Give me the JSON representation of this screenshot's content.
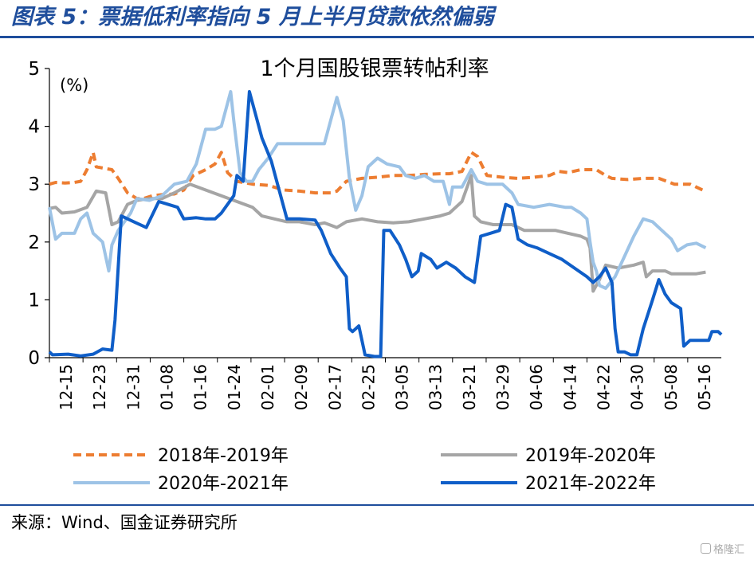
{
  "figure_title": "图表 5：票据低利率指向 5 月上半月贷款依然偏弱",
  "source": "来源：Wind、国金证券研究所",
  "watermark": "格隆汇",
  "chart_data": {
    "type": "line",
    "title": "1个月国股银票转帖利率",
    "ylabel": "(%)",
    "ylim": [
      0,
      5
    ],
    "yticks": [
      0,
      1,
      2,
      3,
      4,
      5
    ],
    "x_ticks": [
      "12-15",
      "12-23",
      "12-31",
      "01-08",
      "01-16",
      "01-24",
      "02-01",
      "02-09",
      "02-17",
      "02-25",
      "03-05",
      "03-13",
      "03-21",
      "03-29",
      "04-06",
      "04-14",
      "04-22",
      "04-30",
      "05-08",
      "05-16"
    ],
    "legend_position": "bottom",
    "series": [
      {
        "name": "2018年-2019年",
        "color": "#ed7d31",
        "style": "dashed",
        "points": [
          [
            0,
            3.0
          ],
          [
            2,
            3.03
          ],
          [
            5,
            3.02
          ],
          [
            8,
            3.03
          ],
          [
            10,
            3.05
          ],
          [
            12,
            3.25
          ],
          [
            13,
            3.4
          ],
          [
            14,
            3.55
          ],
          [
            15,
            3.3
          ],
          [
            17,
            3.28
          ],
          [
            20,
            3.25
          ],
          [
            22,
            3.1
          ],
          [
            25,
            2.85
          ],
          [
            28,
            2.75
          ],
          [
            30,
            2.75
          ],
          [
            33,
            2.8
          ],
          [
            36,
            2.82
          ],
          [
            40,
            2.83
          ],
          [
            43,
            2.9
          ],
          [
            46,
            3.15
          ],
          [
            50,
            3.25
          ],
          [
            53,
            3.35
          ],
          [
            55,
            3.55
          ],
          [
            57,
            3.2
          ],
          [
            60,
            3.05
          ],
          [
            65,
            3.0
          ],
          [
            70,
            2.98
          ],
          [
            75,
            2.9
          ],
          [
            80,
            2.88
          ],
          [
            85,
            2.85
          ],
          [
            90,
            2.85
          ],
          [
            92,
            2.88
          ],
          [
            95,
            3.05
          ],
          [
            100,
            3.1
          ],
          [
            105,
            3.12
          ],
          [
            110,
            3.15
          ],
          [
            115,
            3.15
          ],
          [
            120,
            3.17
          ],
          [
            125,
            3.18
          ],
          [
            128,
            3.18
          ],
          [
            132,
            3.22
          ],
          [
            135,
            3.55
          ],
          [
            137,
            3.48
          ],
          [
            140,
            3.15
          ],
          [
            145,
            3.12
          ],
          [
            150,
            3.1
          ],
          [
            155,
            3.12
          ],
          [
            160,
            3.15
          ],
          [
            163,
            3.22
          ],
          [
            166,
            3.2
          ],
          [
            170,
            3.25
          ],
          [
            175,
            3.25
          ],
          [
            178,
            3.15
          ],
          [
            180,
            3.1
          ],
          [
            185,
            3.08
          ],
          [
            190,
            3.1
          ],
          [
            195,
            3.1
          ],
          [
            200,
            3.0
          ],
          [
            205,
            3.0
          ],
          [
            207,
            2.95
          ],
          [
            209,
            2.9
          ]
        ]
      },
      {
        "name": "2019年-2020年",
        "color": "#a5a5a5",
        "style": "solid",
        "points": [
          [
            0,
            2.58
          ],
          [
            2,
            2.6
          ],
          [
            4,
            2.5
          ],
          [
            8,
            2.52
          ],
          [
            12,
            2.6
          ],
          [
            15,
            2.88
          ],
          [
            18,
            2.85
          ],
          [
            20,
            2.3
          ],
          [
            22,
            2.35
          ],
          [
            25,
            2.65
          ],
          [
            28,
            2.72
          ],
          [
            32,
            2.75
          ],
          [
            36,
            2.75
          ],
          [
            40,
            2.85
          ],
          [
            45,
            3.0
          ],
          [
            50,
            2.9
          ],
          [
            55,
            2.8
          ],
          [
            60,
            2.7
          ],
          [
            65,
            2.6
          ],
          [
            68,
            2.45
          ],
          [
            72,
            2.4
          ],
          [
            76,
            2.35
          ],
          [
            80,
            2.35
          ],
          [
            85,
            2.3
          ],
          [
            88,
            2.33
          ],
          [
            92,
            2.25
          ],
          [
            95,
            2.35
          ],
          [
            100,
            2.4
          ],
          [
            105,
            2.35
          ],
          [
            110,
            2.33
          ],
          [
            115,
            2.35
          ],
          [
            120,
            2.4
          ],
          [
            125,
            2.45
          ],
          [
            128,
            2.5
          ],
          [
            132,
            2.7
          ],
          [
            135,
            3.15
          ],
          [
            136,
            2.45
          ],
          [
            138,
            2.35
          ],
          [
            142,
            2.3
          ],
          [
            148,
            2.3
          ],
          [
            152,
            2.2
          ],
          [
            157,
            2.2
          ],
          [
            162,
            2.2
          ],
          [
            166,
            2.15
          ],
          [
            170,
            2.1
          ],
          [
            172,
            2.05
          ],
          [
            173,
            1.9
          ],
          [
            174,
            1.15
          ],
          [
            176,
            1.35
          ],
          [
            178,
            1.6
          ],
          [
            182,
            1.55
          ],
          [
            187,
            1.6
          ],
          [
            190,
            1.65
          ],
          [
            191,
            1.4
          ],
          [
            193,
            1.5
          ],
          [
            197,
            1.5
          ],
          [
            199,
            1.45
          ],
          [
            203,
            1.45
          ],
          [
            207,
            1.45
          ],
          [
            210,
            1.48
          ]
        ]
      },
      {
        "name": "2020年-2021年",
        "color": "#9dc3e6",
        "style": "solid",
        "points": [
          [
            0,
            2.6
          ],
          [
            2,
            2.05
          ],
          [
            4,
            2.15
          ],
          [
            8,
            2.15
          ],
          [
            10,
            2.4
          ],
          [
            12,
            2.5
          ],
          [
            14,
            2.15
          ],
          [
            17,
            2.0
          ],
          [
            19,
            1.5
          ],
          [
            20,
            1.95
          ],
          [
            22,
            2.2
          ],
          [
            26,
            2.5
          ],
          [
            28,
            2.75
          ],
          [
            32,
            2.72
          ],
          [
            36,
            2.8
          ],
          [
            40,
            3.0
          ],
          [
            44,
            3.05
          ],
          [
            47,
            3.35
          ],
          [
            50,
            3.95
          ],
          [
            53,
            3.95
          ],
          [
            55,
            4.0
          ],
          [
            58,
            4.6
          ],
          [
            59,
            4.1
          ],
          [
            61,
            3.2
          ],
          [
            63,
            3.05
          ],
          [
            65,
            3.05
          ],
          [
            67,
            3.25
          ],
          [
            70,
            3.45
          ],
          [
            73,
            3.7
          ],
          [
            77,
            3.7
          ],
          [
            80,
            3.7
          ],
          [
            85,
            3.7
          ],
          [
            88,
            3.7
          ],
          [
            92,
            4.5
          ],
          [
            94,
            4.1
          ],
          [
            96,
            3.1
          ],
          [
            98,
            2.55
          ],
          [
            100,
            2.8
          ],
          [
            102,
            3.3
          ],
          [
            105,
            3.45
          ],
          [
            108,
            3.35
          ],
          [
            112,
            3.3
          ],
          [
            114,
            3.15
          ],
          [
            117,
            3.1
          ],
          [
            120,
            3.15
          ],
          [
            123,
            3.05
          ],
          [
            126,
            3.05
          ],
          [
            128,
            2.65
          ],
          [
            129,
            2.95
          ],
          [
            132,
            2.95
          ],
          [
            133,
            3.05
          ],
          [
            135,
            3.25
          ],
          [
            137,
            3.05
          ],
          [
            140,
            3.0
          ],
          [
            145,
            3.0
          ],
          [
            148,
            2.85
          ],
          [
            150,
            2.65
          ],
          [
            155,
            2.6
          ],
          [
            160,
            2.65
          ],
          [
            165,
            2.6
          ],
          [
            167,
            2.6
          ],
          [
            170,
            2.5
          ],
          [
            172,
            2.4
          ],
          [
            173,
            2.0
          ],
          [
            174,
            1.65
          ],
          [
            175,
            1.5
          ],
          [
            176,
            1.25
          ],
          [
            178,
            1.2
          ],
          [
            181,
            1.4
          ],
          [
            184,
            1.75
          ],
          [
            187,
            2.1
          ],
          [
            190,
            2.4
          ],
          [
            193,
            2.35
          ],
          [
            196,
            2.2
          ],
          [
            199,
            2.05
          ],
          [
            201,
            1.85
          ],
          [
            204,
            1.95
          ],
          [
            207,
            1.98
          ],
          [
            210,
            1.9
          ]
        ]
      },
      {
        "name": "2021年-2022年",
        "color": "#0f5ec8",
        "style": "solid",
        "points": [
          [
            0,
            0.1
          ],
          [
            1,
            0.05
          ],
          [
            6,
            0.06
          ],
          [
            10,
            0.03
          ],
          [
            14,
            0.06
          ],
          [
            17,
            0.15
          ],
          [
            20,
            0.13
          ],
          [
            21,
            0.65
          ],
          [
            23,
            2.45
          ],
          [
            27,
            2.35
          ],
          [
            31,
            2.25
          ],
          [
            35,
            2.7
          ],
          [
            38,
            2.65
          ],
          [
            41,
            2.6
          ],
          [
            43,
            2.4
          ],
          [
            47,
            2.42
          ],
          [
            50,
            2.4
          ],
          [
            53,
            2.4
          ],
          [
            55,
            2.5
          ],
          [
            57,
            2.65
          ],
          [
            59,
            2.8
          ],
          [
            60,
            3.15
          ],
          [
            62,
            3.05
          ],
          [
            64,
            4.6
          ],
          [
            66,
            4.2
          ],
          [
            68,
            3.8
          ],
          [
            71,
            3.4
          ],
          [
            73,
            3.0
          ],
          [
            76,
            2.4
          ],
          [
            80,
            2.4
          ],
          [
            85,
            2.38
          ],
          [
            87,
            2.2
          ],
          [
            90,
            1.8
          ],
          [
            93,
            1.55
          ],
          [
            95,
            1.4
          ],
          [
            96,
            0.5
          ],
          [
            97,
            0.45
          ],
          [
            99,
            0.55
          ],
          [
            101,
            0.05
          ],
          [
            104,
            0.02
          ],
          [
            106,
            0.02
          ],
          [
            107,
            2.2
          ],
          [
            109,
            2.2
          ],
          [
            112,
            1.95
          ],
          [
            114,
            1.7
          ],
          [
            116,
            1.4
          ],
          [
            118,
            1.5
          ],
          [
            119,
            1.8
          ],
          [
            122,
            1.7
          ],
          [
            124,
            1.55
          ],
          [
            127,
            1.65
          ],
          [
            130,
            1.55
          ],
          [
            133,
            1.4
          ],
          [
            136,
            1.3
          ],
          [
            138,
            2.1
          ],
          [
            141,
            2.15
          ],
          [
            144,
            2.2
          ],
          [
            146,
            2.65
          ],
          [
            148,
            2.6
          ],
          [
            150,
            2.05
          ],
          [
            153,
            1.95
          ],
          [
            156,
            1.9
          ],
          [
            160,
            1.8
          ],
          [
            164,
            1.7
          ],
          [
            168,
            1.55
          ],
          [
            172,
            1.4
          ],
          [
            174,
            1.3
          ],
          [
            176,
            1.4
          ],
          [
            178,
            1.55
          ],
          [
            180,
            1.3
          ],
          [
            181,
            0.5
          ],
          [
            182,
            0.1
          ],
          [
            184,
            0.1
          ],
          [
            186,
            0.05
          ],
          [
            188,
            0.05
          ],
          [
            190,
            0.5
          ],
          [
            193,
            1.0
          ],
          [
            195,
            1.35
          ],
          [
            197,
            1.1
          ],
          [
            199,
            0.95
          ],
          [
            202,
            0.85
          ],
          [
            203,
            0.2
          ],
          [
            205,
            0.3
          ],
          [
            208,
            0.3
          ],
          [
            211,
            0.3
          ],
          [
            212,
            0.45
          ],
          [
            214,
            0.45
          ],
          [
            215,
            0.4
          ]
        ]
      }
    ]
  }
}
